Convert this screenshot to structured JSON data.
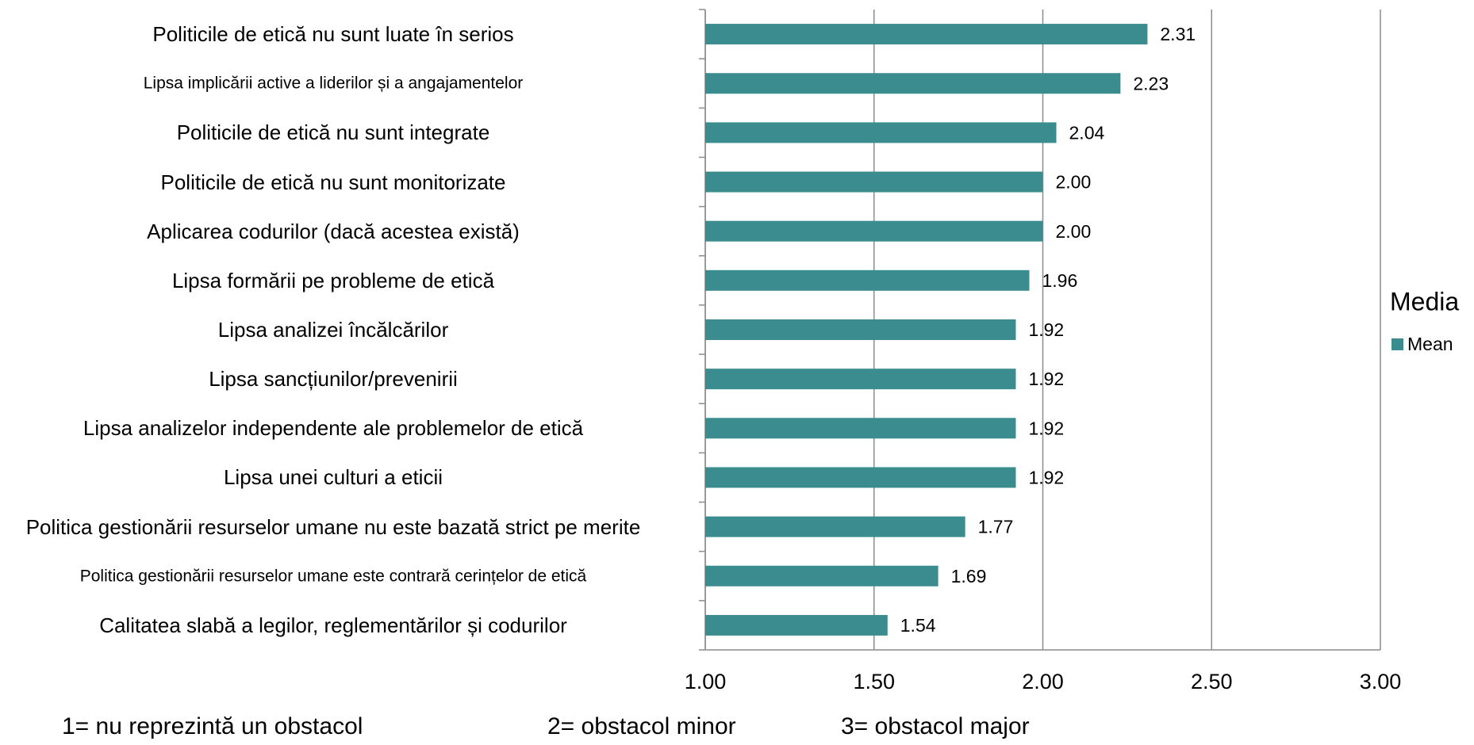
{
  "chart_data": {
    "type": "bar",
    "orientation": "horizontal",
    "categories": [
      "Politicile de etică nu sunt luate în serios",
      "Lipsa implicării active a liderilor și a angajamentelor",
      "Politicile de etică nu sunt integrate",
      "Politicile de etică nu sunt monitorizate",
      "Aplicarea codurilor (dacă acestea există)",
      "Lipsa formării pe probleme de etică",
      "Lipsa analizei încălcărilor",
      "Lipsa sancțiunilor/prevenirii",
      "Lipsa analizelor independente ale problemelor de etică",
      "Lipsa unei culturi a eticii",
      "Politica gestionării resurselor umane nu este bazată strict pe merite",
      "Politica gestionării resurselor umane este contrară cerințelor de etică",
      "Calitatea slabă a legilor, reglementărilor și codurilor"
    ],
    "series": [
      {
        "name": "Mean",
        "color": "#3a8c8f",
        "values": [
          2.31,
          2.23,
          2.04,
          2.0,
          2.0,
          1.96,
          1.92,
          1.92,
          1.92,
          1.92,
          1.77,
          1.69,
          1.54
        ],
        "value_labels": [
          "2.31",
          "2.23",
          "2.04",
          "2.00",
          "2.00",
          "1.96",
          "1.92",
          "1.92",
          "1.92",
          "1.92",
          "1.77",
          "1.69",
          "1.54"
        ]
      }
    ],
    "xlim": [
      1,
      3
    ],
    "xticks": [
      {
        "value": 1,
        "label": "1.00"
      },
      {
        "value": 1.5,
        "label": "1.50"
      },
      {
        "value": 2,
        "label": "2.00"
      },
      {
        "value": 2.5,
        "label": "2.50"
      },
      {
        "value": 3,
        "label": "3.00"
      }
    ],
    "grid": true,
    "legend_title": "Media",
    "legend_position": "right",
    "annotations": [
      "1= nu reprezintă un obstacol",
      "2= obstacol minor",
      "3= obstacol major"
    ]
  }
}
